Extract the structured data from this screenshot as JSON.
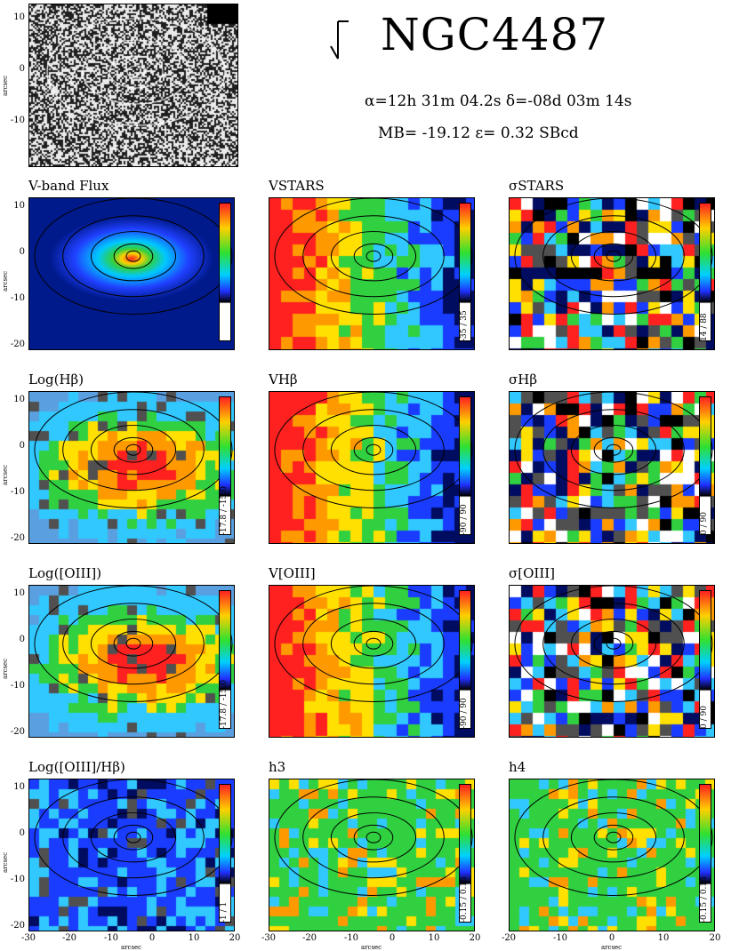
{
  "header": {
    "galaxy_name": "NGC4487",
    "coords_line": "α=12h 31m 04.2s   δ=-08d 03m 14s",
    "props_line": "MB= -19.12   ε= 0.32   SBcd"
  },
  "thumbnail": {
    "yticks": [
      "10",
      "0",
      "-10"
    ],
    "ylabel": "arcsec"
  },
  "panels": [
    {
      "id": "vflux",
      "title": "V-band Flux",
      "range": "",
      "style": "smooth-flux"
    },
    {
      "id": "vstars",
      "title": "VSTARS",
      "range": "-35 / 35",
      "style": "velocity"
    },
    {
      "id": "sstars",
      "title": "σSTARS",
      "range": "14 / 88",
      "style": "noisy"
    },
    {
      "id": "loghb",
      "title": "Log(Hβ)",
      "range": "-17.8 / -15.0",
      "style": "smooth-line"
    },
    {
      "id": "vhb",
      "title": "VHβ",
      "range": "-90 / 90",
      "style": "velocity"
    },
    {
      "id": "shb",
      "title": "σHβ",
      "range": "0 / 90",
      "style": "noisy"
    },
    {
      "id": "logoiii",
      "title": "Log([OIII])",
      "range": "-17.8 / -15.0",
      "style": "smooth-line"
    },
    {
      "id": "voiii",
      "title": "V[OIII]",
      "range": "-90 / 90",
      "style": "velocity"
    },
    {
      "id": "soiii",
      "title": "σ[OIII]",
      "range": "0 / 90",
      "style": "noisy"
    },
    {
      "id": "ratio",
      "title": "Log([OIII]/Hβ)",
      "range": "-1 / 1",
      "style": "ratio"
    },
    {
      "id": "h3",
      "title": "h3",
      "range": "-0.15 / 0.15",
      "style": "green"
    },
    {
      "id": "h4",
      "title": "h4",
      "range": "-0.15 / 0.15",
      "style": "green"
    }
  ],
  "axes": {
    "yticks": [
      "10",
      "0",
      "-10",
      "-20"
    ],
    "xticks_left": [
      "-30",
      "-20",
      "-10",
      "0",
      "10",
      "20"
    ],
    "xticks_right": [
      "-20",
      "-10",
      "0",
      "10",
      "20"
    ],
    "xlabel": "arcsec",
    "ylabel": "arcsec"
  },
  "colors": {
    "red": "#ff2020",
    "orange": "#ff9900",
    "yellow": "#ffe000",
    "green": "#30d040",
    "cyan": "#30c8ff",
    "blue": "#1a3cff",
    "navy": "#000c60",
    "gray": "#505050"
  }
}
